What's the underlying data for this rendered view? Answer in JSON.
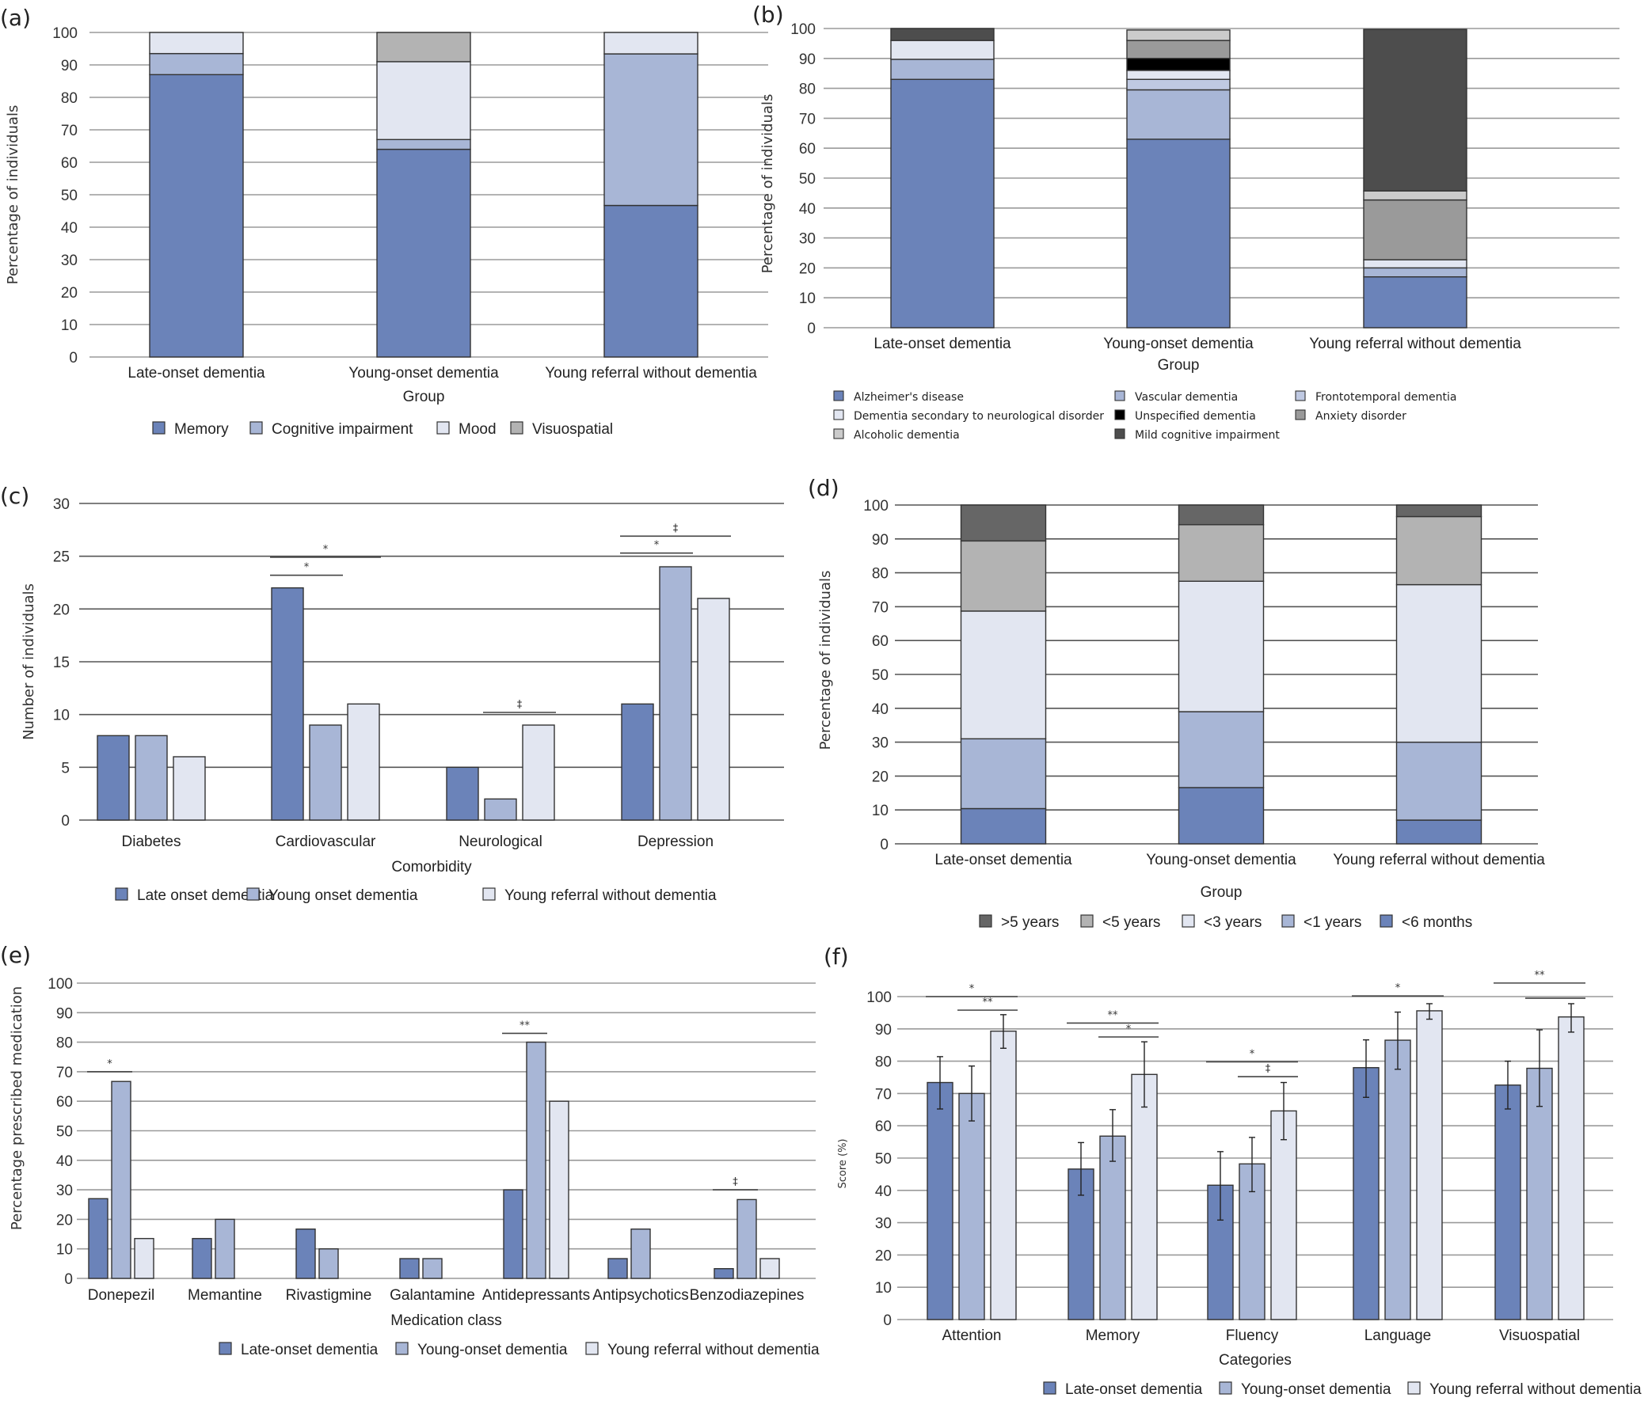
{
  "colors": {
    "dark_blue": "#6b83b9",
    "mid_blue": "#a8b6d6",
    "pale_blue": "#bfc9e2",
    "light": "#e2e6f1",
    "light_grey": "#cbcbcb",
    "mid_grey": "#9a9a9a",
    "grey_b3": "#b3b3b3",
    "dark_grey": "#666666",
    "charcoal": "#4d4d4d",
    "black": "#000000"
  },
  "chart_data": [
    {
      "id": "a",
      "panel_label": "(a)",
      "type": "bar",
      "stacked": true,
      "categories": [
        "Late-onset dementia",
        "Young-onset dementia",
        "Young referral without dementia"
      ],
      "xlabel": "Group",
      "ylabel": "Percentage of individuals",
      "ylim": [
        0,
        100
      ],
      "yticks": [
        0,
        10,
        20,
        30,
        40,
        50,
        60,
        70,
        80,
        90,
        100
      ],
      "grid": true,
      "legend_position": "bottom",
      "series": [
        {
          "name": "Memory",
          "color": "#6b83b9",
          "values": [
            87,
            64,
            46.7
          ]
        },
        {
          "name": "Cognitive impairment",
          "color": "#a8b6d6",
          "values": [
            6.5,
            3,
            46.7
          ]
        },
        {
          "name": "Mood",
          "color": "#e2e6f1",
          "values": [
            6.5,
            24,
            6.6
          ]
        },
        {
          "name": "Visuospatial",
          "color": "#b3b3b3",
          "values": [
            0,
            9,
            0
          ]
        }
      ]
    },
    {
      "id": "b",
      "panel_label": "(b)",
      "type": "bar",
      "stacked": true,
      "categories": [
        "Late-onset dementia",
        "Young-onset dementia",
        "Young referral without dementia"
      ],
      "xlabel": "Group",
      "ylabel": "Percentage of individuals",
      "ylim": [
        0,
        100
      ],
      "yticks": [
        0,
        10,
        20,
        30,
        40,
        50,
        60,
        70,
        80,
        90,
        100
      ],
      "grid": true,
      "legend_position": "bottom",
      "series": [
        {
          "name": "Alzheimer's disease",
          "color": "#6b83b9",
          "values": [
            83,
            63,
            17
          ]
        },
        {
          "name": "Vascular dementia",
          "color": "#a8b6d6",
          "values": [
            6.7,
            16.5,
            3
          ]
        },
        {
          "name": "Frontotemporal dementia",
          "color": "#bfc9e2",
          "values": [
            0,
            3.5,
            0
          ]
        },
        {
          "name": "Dementia secondary to neurological disorder",
          "color": "#e2e6f1",
          "values": [
            6.3,
            3,
            2.7
          ]
        },
        {
          "name": "Unspecified dementia",
          "color": "#000000",
          "values": [
            0,
            4,
            0
          ]
        },
        {
          "name": "Anxiety disorder",
          "color": "#9a9a9a",
          "values": [
            0,
            6,
            20
          ]
        },
        {
          "name": "Alcoholic dementia",
          "color": "#cbcbcb",
          "values": [
            0,
            3.5,
            3
          ]
        },
        {
          "name": "Mild cognitive impairment",
          "color": "#4d4d4d",
          "values": [
            4,
            0,
            54
          ]
        }
      ],
      "legend_order": [
        [
          "Alzheimer's disease",
          "Dementia secondary to neurological disorder",
          "Alcoholic dementia"
        ],
        [
          "Vascular dementia",
          "Unspecified dementia",
          "Mild cognitive impairment"
        ],
        [
          "Frontotemporal dementia",
          "Anxiety disorder"
        ]
      ]
    },
    {
      "id": "c",
      "panel_label": "(c)",
      "type": "bar",
      "stacked": false,
      "categories": [
        "Diabetes",
        "Cardiovascular",
        "Neurological",
        "Depression"
      ],
      "xlabel": "Comorbidity",
      "ylabel": "Number of individuals",
      "ylim": [
        0,
        30
      ],
      "yticks": [
        0,
        5,
        10,
        15,
        20,
        25,
        30
      ],
      "grid": true,
      "legend_position": "bottom",
      "series": [
        {
          "name": "Late onset dementia",
          "color": "#6b83b9",
          "values": [
            8,
            22,
            5,
            11
          ]
        },
        {
          "name": "Young onset dementia",
          "color": "#a8b6d6",
          "values": [
            8,
            9,
            2,
            24
          ]
        },
        {
          "name": "Young referral without dementia",
          "color": "#e2e6f1",
          "values": [
            6,
            11,
            9,
            21
          ]
        }
      ],
      "annotations": [
        {
          "category": 1,
          "from": 0,
          "to": 1,
          "level": 23.2,
          "label": "*"
        },
        {
          "category": 1,
          "from": 0,
          "to": 2,
          "level": 24.9,
          "label": "*"
        },
        {
          "category": 2,
          "from": 1,
          "to": 2,
          "level": 10.2,
          "label": "‡"
        },
        {
          "category": 3,
          "from": 0,
          "to": 1,
          "level": 25.3,
          "label": "*"
        },
        {
          "category": 3,
          "from": 0,
          "to": 2,
          "level": 26.9,
          "label": "‡"
        }
      ]
    },
    {
      "id": "d",
      "panel_label": "(d)",
      "type": "bar",
      "stacked": true,
      "categories": [
        "Late-onset dementia",
        "Young-onset dementia",
        "Young referral without dementia"
      ],
      "xlabel": "Group",
      "ylabel": "Percentage of individuals",
      "ylim": [
        0,
        100
      ],
      "yticks": [
        0,
        10,
        20,
        30,
        40,
        50,
        60,
        70,
        80,
        90,
        100
      ],
      "grid": true,
      "legend_position": "bottom",
      "series": [
        {
          "name": "<6 months",
          "color": "#6b83b9",
          "values": [
            10.4,
            16.6,
            7
          ]
        },
        {
          "name": "<1 years",
          "color": "#a8b6d6",
          "values": [
            20.6,
            22.4,
            23
          ]
        },
        {
          "name": "<3 years",
          "color": "#e2e6f1",
          "values": [
            37.7,
            38.5,
            46.5
          ]
        },
        {
          "name": "<5 years",
          "color": "#b3b3b3",
          "values": [
            20.7,
            16.7,
            20.1
          ]
        },
        {
          "name": ">5 years",
          "color": "#666666",
          "values": [
            10.6,
            5.8,
            3.4
          ]
        }
      ],
      "legend_order": [
        ">5 years",
        "<5 years",
        "<3 years",
        "<1 years",
        "<6 months"
      ]
    },
    {
      "id": "e",
      "panel_label": "(e)",
      "type": "bar",
      "stacked": false,
      "categories": [
        "Donepezil",
        "Memantine",
        "Rivastigmine",
        "Galantamine",
        "Antidepressants",
        "Antipsychotics",
        "Benzodiazepines"
      ],
      "xlabel": "Medication class",
      "ylabel": "Percentage prescribed medication",
      "ylim": [
        0,
        100
      ],
      "yticks": [
        0,
        10,
        20,
        30,
        40,
        50,
        60,
        70,
        80,
        90,
        100
      ],
      "grid": true,
      "legend_position": "bottom",
      "series": [
        {
          "name": "Late-onset dementia",
          "color": "#6b83b9",
          "values": [
            27,
            13.5,
            16.7,
            6.7,
            30,
            6.7,
            3.3
          ]
        },
        {
          "name": "Young-onset dementia",
          "color": "#a8b6d6",
          "values": [
            66.7,
            20,
            10,
            6.7,
            80,
            16.7,
            26.7
          ]
        },
        {
          "name": "Young referral without dementia",
          "color": "#e2e6f1",
          "values": [
            13.5,
            0,
            0,
            0,
            60,
            0,
            6.7
          ]
        }
      ],
      "annotations": [
        {
          "category": 0,
          "from": 0,
          "to": 1,
          "level": 70,
          "label": "*"
        },
        {
          "category": 4,
          "from": 0,
          "to": 1,
          "level": 83,
          "label": "**"
        },
        {
          "category": 6,
          "from": 0,
          "to": 1,
          "level": 30,
          "label": "‡"
        }
      ]
    },
    {
      "id": "f",
      "panel_label": "(f)",
      "type": "bar",
      "stacked": false,
      "categories": [
        "Attention",
        "Memory",
        "Fluency",
        "Language",
        "Visuospatial"
      ],
      "xlabel": "Categories",
      "ylabel": "Score (%)",
      "ylim": [
        0,
        100
      ],
      "yticks": [
        0,
        10,
        20,
        30,
        40,
        50,
        60,
        70,
        80,
        90,
        100
      ],
      "grid": true,
      "legend_position": "bottom",
      "series": [
        {
          "name": "Late-onset dementia",
          "color": "#6b83b9",
          "values": [
            73.4,
            46.6,
            41.6,
            78,
            72.6
          ],
          "error_low": [
            65.2,
            38.5,
            30.8,
            68.8,
            65.2
          ],
          "error_high": [
            81.4,
            54.8,
            52,
            86.6,
            80
          ]
        },
        {
          "name": "Young-onset dementia",
          "color": "#a8b6d6",
          "values": [
            70,
            56.8,
            48.2,
            86.5,
            77.8
          ],
          "error_low": [
            61.5,
            49,
            39.6,
            77.5,
            66
          ],
          "error_high": [
            78.5,
            65,
            56.4,
            95.2,
            89.7
          ]
        },
        {
          "name": "Young referral without dementia",
          "color": "#e2e6f1",
          "values": [
            89.3,
            75.9,
            64.6,
            95.6,
            93.7
          ],
          "error_low": [
            84,
            65.8,
            55.7,
            93,
            89
          ],
          "error_high": [
            94.4,
            86,
            73.4,
            97.8,
            97.8
          ]
        }
      ],
      "annotations": [
        {
          "category": 0,
          "from": 0,
          "to": 2,
          "level": 100,
          "label": "*"
        },
        {
          "category": 0,
          "from": 1,
          "to": 2,
          "level": 95.8,
          "label": "**"
        },
        {
          "category": 1,
          "from": 0,
          "to": 2,
          "level": 91.8,
          "label": "**"
        },
        {
          "category": 1,
          "from": 1,
          "to": 2,
          "level": 87.5,
          "label": "*"
        },
        {
          "category": 2,
          "from": 0,
          "to": 2,
          "level": 79.8,
          "label": "*"
        },
        {
          "category": 2,
          "from": 1,
          "to": 2,
          "level": 75.2,
          "label": "‡"
        },
        {
          "category": 3,
          "from": 0,
          "to": 2,
          "level": 100.2,
          "label": "*"
        },
        {
          "category": 4,
          "from": 0,
          "to": 2,
          "level": 104.2,
          "label": "**"
        },
        {
          "category": 4,
          "from": 1,
          "to": 2,
          "level": 99.5,
          "label": ""
        }
      ]
    }
  ]
}
